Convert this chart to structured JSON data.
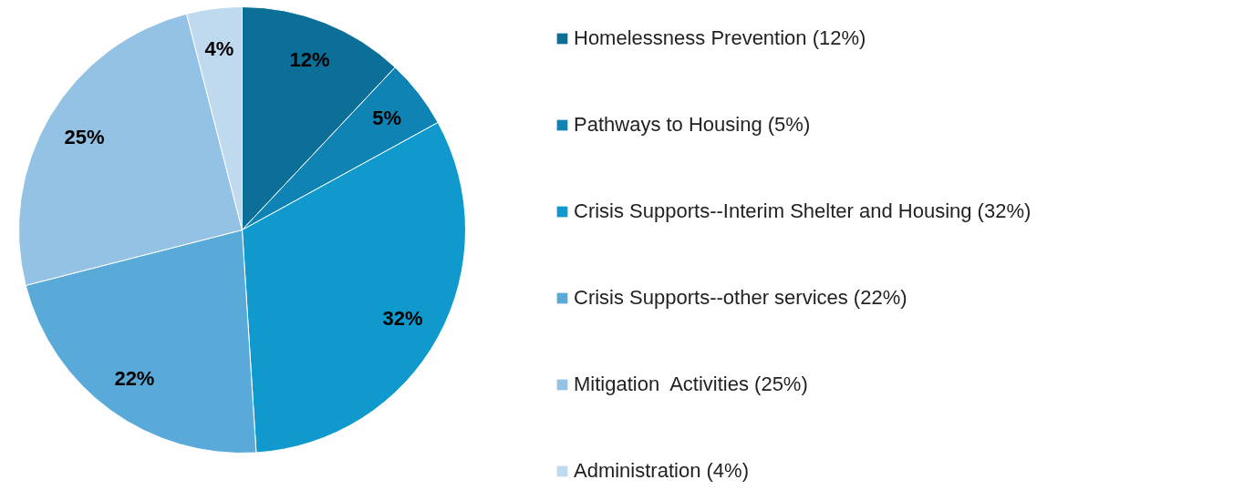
{
  "chart_data": {
    "type": "pie",
    "categories": [
      "Homelessness Prevention (12%)",
      "Pathways to Housing (5%)",
      "Crisis Supports--Interim Shelter and Housing (32%)",
      "Crisis Supports--other services (22%)",
      "Mitigation  Activities (25%)",
      "Administration (4%)"
    ],
    "values": [
      12,
      5,
      32,
      22,
      25,
      4
    ],
    "value_labels": [
      "12%",
      "5%",
      "32%",
      "22%",
      "25%",
      "4%"
    ],
    "colors": [
      "#0b6f98",
      "#0f83b3",
      "#0f99cc",
      "#5aaad9",
      "#93c2e4",
      "#bfd9ef"
    ],
    "legend": "right"
  }
}
